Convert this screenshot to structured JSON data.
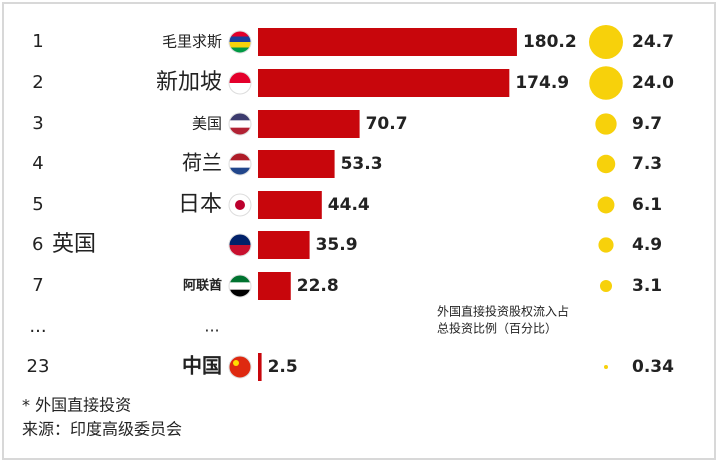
{
  "chart_data": {
    "type": "bar",
    "ranks": [
      "1",
      "2",
      "3",
      "4",
      "5",
      "6",
      "7",
      "...",
      "23"
    ],
    "categories": [
      "毛里求斯",
      "新加坡",
      "美国",
      "荷兰",
      "日本",
      "英国",
      "阿联酋",
      "...",
      "中国"
    ],
    "series": [
      {
        "color": "#c8060c",
        "values": [
          180.2,
          174.9,
          70.7,
          53.3,
          44.4,
          35.9,
          22.8,
          null,
          2.5
        ]
      },
      {
        "color": "#f7d10b",
        "values": [
          24.7,
          24.0,
          9.7,
          7.3,
          6.1,
          4.9,
          3.1,
          null,
          0.34
        ],
        "value_labels": [
          "24.7",
          "24.0",
          "9.7",
          "7.3",
          "6.1",
          "4.9",
          "3.1",
          null,
          "0.34"
        ]
      }
    ],
    "annotation": [
      "外国直接投资股权流入占",
      "总投资比例（百分比）"
    ],
    "footnotes": [
      "* 外国直接投资",
      "来源：印度高级委员会"
    ]
  }
}
